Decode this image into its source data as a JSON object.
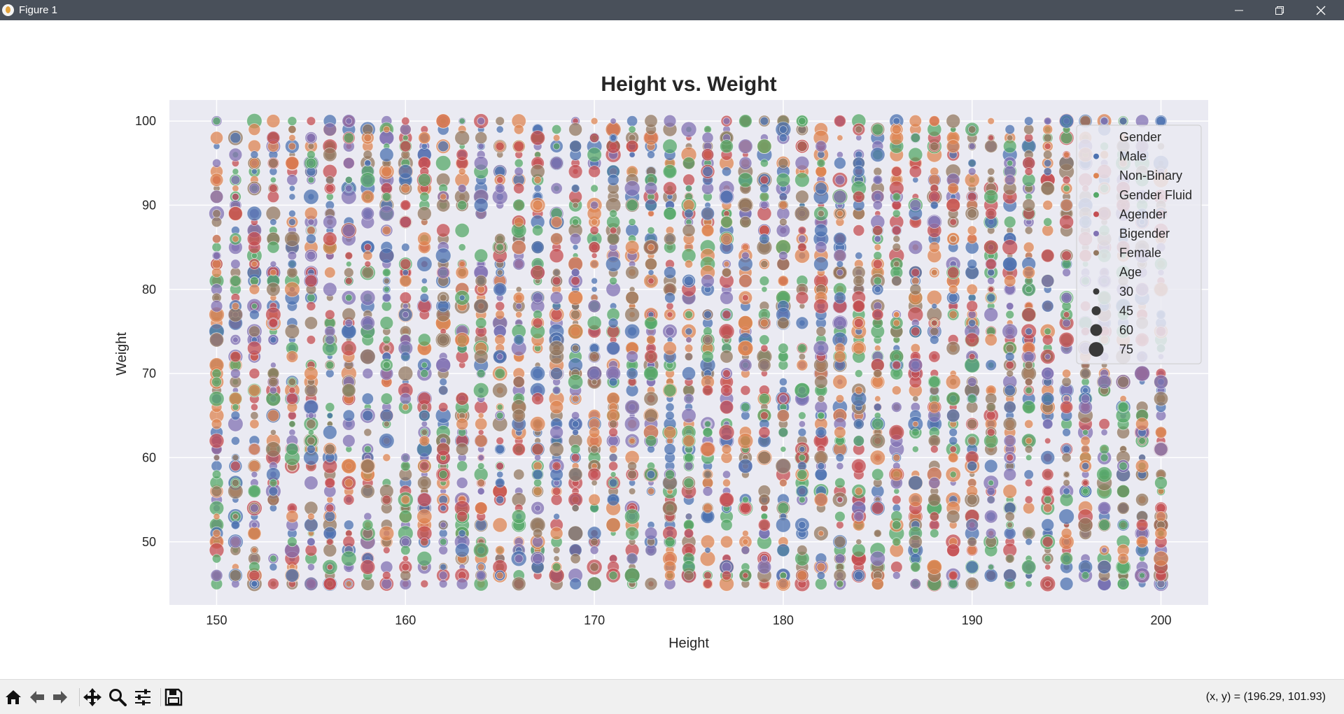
{
  "window": {
    "title": "Figure 1"
  },
  "toolbar": {
    "tools": [
      "home-icon",
      "back-arrow-icon",
      "forward-arrow-icon",
      "pan-icon",
      "zoom-icon",
      "configure-subplots-icon",
      "save-icon"
    ],
    "coords": "(x, y) = (196.29, 101.93)"
  },
  "colors": {
    "plot_background": "#eaeaf2",
    "grid": "#ffffff",
    "Male": "#4c72b0",
    "Non-Binary": "#dd8452",
    "Gender Fluid": "#55a868",
    "Agender": "#c44e52",
    "Bigender": "#8172b3",
    "Female": "#937860"
  },
  "chart_data": {
    "type": "scatter",
    "title": "Height vs. Weight",
    "xlabel": "Height",
    "ylabel": "Weight",
    "xlim": [
      147.5,
      202.5
    ],
    "ylim": [
      42.5,
      102.5
    ],
    "xticks": [
      150,
      160,
      170,
      180,
      190,
      200
    ],
    "yticks": [
      50,
      60,
      70,
      80,
      90,
      100
    ],
    "grid": true,
    "legend_position": "top-right",
    "hue": "Gender",
    "size": "Age",
    "legend": {
      "hue_title": "Gender",
      "hue_entries": [
        "Male",
        "Non-Binary",
        "Gender Fluid",
        "Agender",
        "Bigender",
        "Female"
      ],
      "size_title": "Age",
      "size_entries": [
        "30",
        "45",
        "60",
        "75"
      ]
    },
    "x_values": "integers 150 to 200",
    "y_range_observed": [
      45,
      100
    ],
    "age_range": [
      18,
      80
    ],
    "points_per_x": 90,
    "alpha": 0.75
  }
}
